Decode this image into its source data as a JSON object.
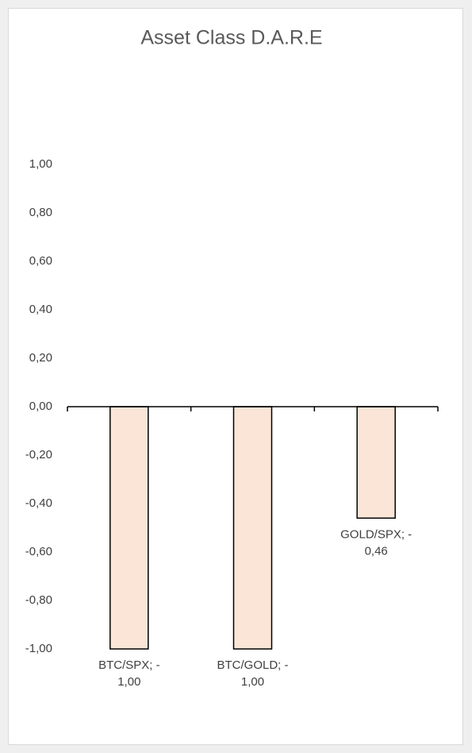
{
  "chart_data": {
    "type": "bar",
    "title": "Asset Class D.A.R.E",
    "categories": [
      null,
      null,
      null
    ],
    "values": [
      -1.0,
      -1.0,
      -0.46
    ],
    "value_labels": [
      "BTC/SPX; -1,00",
      "BTC/GOLD; -1,00",
      "GOLD/SPX; -0,46"
    ],
    "color": "#fbe5d6",
    "ylim": [
      -1,
      1
    ],
    "yticks": [
      {
        "value": 1,
        "label": "1,00"
      },
      {
        "value": 0.8,
        "label": "0,80"
      },
      {
        "value": 0.6,
        "label": "0,60"
      },
      {
        "value": 0.4,
        "label": "0,40"
      },
      {
        "value": 0.2,
        "label": "0,20"
      },
      {
        "value": 0,
        "label": "0,00"
      },
      {
        "value": -0.2,
        "label": "-0,20"
      },
      {
        "value": -0.4,
        "label": "-0,40"
      },
      {
        "value": -0.6,
        "label": "-0,60"
      },
      {
        "value": -0.8,
        "label": "-0,80"
      },
      {
        "value": -1,
        "label": "-1,00"
      }
    ],
    "grid": false
  }
}
